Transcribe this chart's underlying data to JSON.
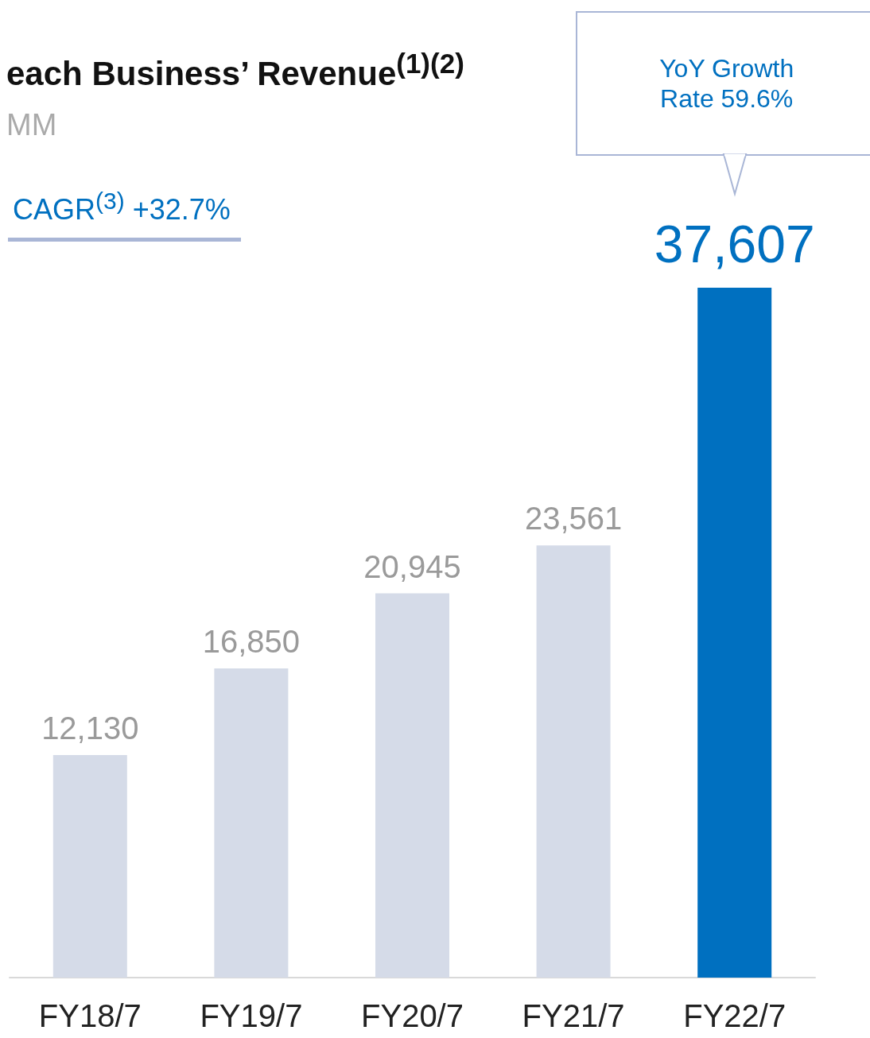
{
  "chart_data": {
    "type": "bar",
    "title": "each Business’ Revenue$^{(1)(2)}$",
    "subtitle": "MM",
    "categories": [
      "FY18/7",
      "FY19/7",
      "FY20/7",
      "FY21/7",
      "FY22/7"
    ],
    "values": [
      12130,
      16850,
      20945,
      23561,
      37607
    ],
    "colors": [
      "#d5dbe8",
      "#d5dbe8",
      "#d5dbe8",
      "#d5dbe8",
      "#0070c0"
    ],
    "value_labels": [
      "12,130",
      "16,850",
      "20,945",
      "23,561",
      "37,607"
    ],
    "annotations": [
      "CAGR$^{(3)}$ +32.7%",
      "YoY Growth Rate 59.6%"
    ]
  }
}
